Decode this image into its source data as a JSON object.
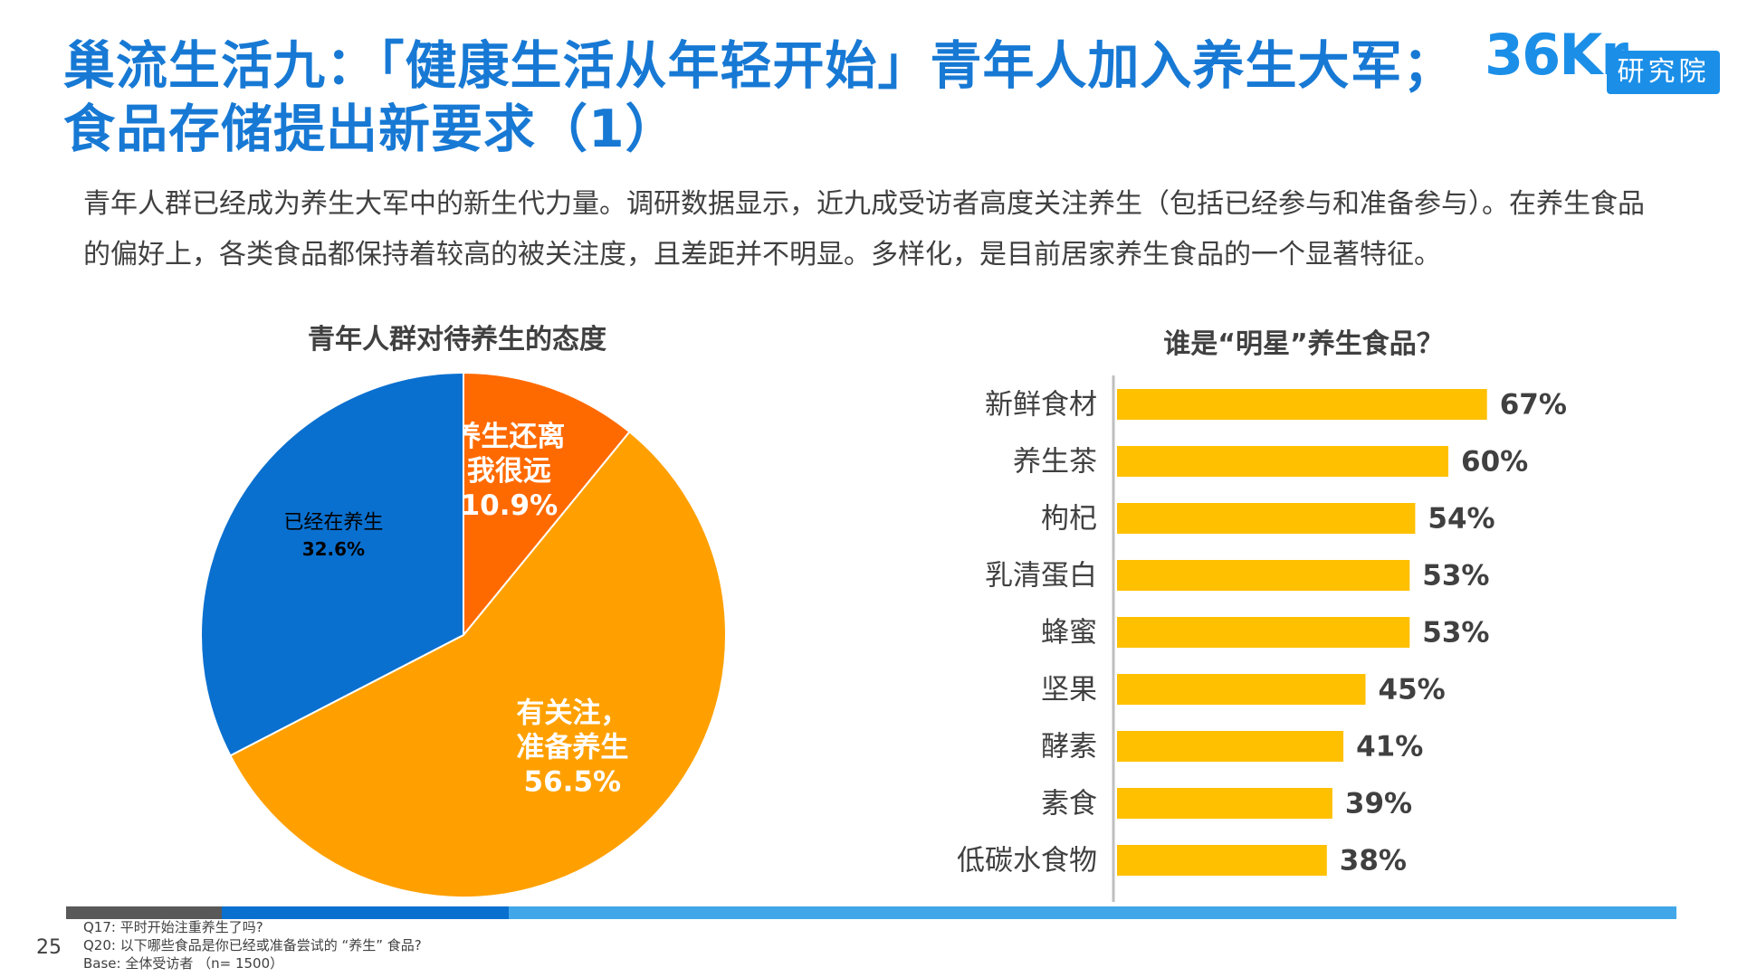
{
  "title": {
    "line1": "巢流生活九：「健康生活从年轻开始」青年人加入养生大军；",
    "line2": "食品存储提出新要求（1）"
  },
  "logo": {
    "brand": "36Kr",
    "badge": "研究院"
  },
  "intro": "青年人群已经成为养生大军中的新生代力量。调研数据显示，近九成受访者高度关注养生（包括已经参与和准备参与）。在养生食品的偏好上，各类食品都保持着较高的被关注度，且差距并不明显。多样化，是目前居家养生食品的一个显著特征。",
  "colors": {
    "title_blue": "#1779d4",
    "pie_blue": "#0a70cf",
    "pie_orange": "#ffa000",
    "pie_red": "#ff6a00",
    "bar_yellow": "#ffc000"
  },
  "chart_data": [
    {
      "type": "pie",
      "title": "青年人群对待养生的态度",
      "slices": [
        {
          "label_lines": [
            "养生还离",
            "我很远"
          ],
          "value": 10.9,
          "value_label": "10.9%",
          "color": "#ff6a00",
          "label_color": "#ffffff",
          "bold": true
        },
        {
          "label_lines": [
            "有关注，",
            "准备养生"
          ],
          "value": 56.5,
          "value_label": "56.5%",
          "color": "#ffa000",
          "label_color": "#ffffff",
          "bold": true
        },
        {
          "label_lines": [
            "已经在养生"
          ],
          "value": 32.6,
          "value_label": "32.6%",
          "color": "#0a70cf",
          "label_color": "#000000",
          "bold": false
        }
      ]
    },
    {
      "type": "bar",
      "orientation": "horizontal",
      "title": "谁是“明星”养生食品？",
      "categories": [
        "新鲜食材",
        "养生茶",
        "枸杞",
        "乳清蛋白",
        "蜂蜜",
        "坚果",
        "酵素",
        "素食",
        "低碳水食物"
      ],
      "values": [
        67,
        60,
        54,
        53,
        53,
        45,
        41,
        39,
        38
      ],
      "value_labels": [
        "67%",
        "60%",
        "54%",
        "53%",
        "53%",
        "45%",
        "41%",
        "39%",
        "38%"
      ],
      "xlim": [
        0,
        100
      ]
    }
  ],
  "footer": {
    "page_number": "25",
    "notes": [
      "Q17:   平时开始注重养生了吗?",
      "Q20:   以下哪些食品是你已经或准备尝试的 “养生” 食品?",
      "Base: 全体受访者  （n= 1500）"
    ]
  }
}
